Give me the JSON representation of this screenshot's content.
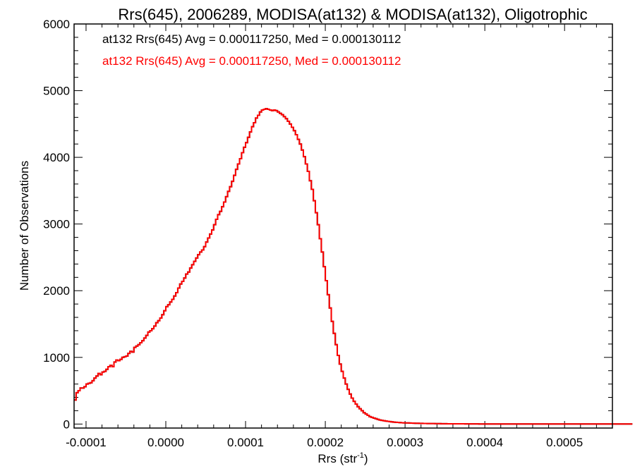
{
  "chart_data": {
    "type": "histogram",
    "title": "Rrs(645), 2006289, MODISA(at132) & MODISA(at132), Oligotrophic",
    "xlabel": "Rrs (str",
    "xlabel_sup": "-1",
    "xlabel_close": ")",
    "ylabel": "Number of Observations",
    "xlim": [
      -0.000115,
      0.00056
    ],
    "ylim": [
      -60,
      6000
    ],
    "x_ticks": [
      -0.0001,
      0.0,
      0.0001,
      0.0002,
      0.0003,
      0.0004,
      0.0005
    ],
    "x_tick_labels": [
      "-0.0001",
      "0.0000",
      "0.0001",
      "0.0002",
      "0.0003",
      "0.0004",
      "0.0005"
    ],
    "y_ticks": [
      0,
      1000,
      2000,
      3000,
      4000,
      5000,
      6000
    ],
    "y_tick_labels": [
      "0",
      "1000",
      "2000",
      "3000",
      "4000",
      "5000",
      "6000"
    ],
    "grid": false,
    "annotations": [
      {
        "text": "at132 Rrs(645) Avg = 0.000117250, Med = 0.000130112",
        "color": "#000000"
      },
      {
        "text": "at132 Rrs(645) Avg = 0.000117250, Med = 0.000130112",
        "color": "#ff0000"
      }
    ],
    "series": [
      {
        "color": "#000000",
        "bin_start": -0.000115,
        "bin_width": 2.5e-06,
        "values": [
          360,
          470,
          500,
          540,
          540,
          560,
          600,
          610,
          620,
          650,
          690,
          720,
          760,
          740,
          780,
          790,
          820,
          860,
          880,
          860,
          930,
          960,
          950,
          970,
          1000,
          1010,
          1020,
          1060,
          1090,
          1080,
          1150,
          1170,
          1190,
          1220,
          1250,
          1290,
          1330,
          1380,
          1400,
          1430,
          1470,
          1520,
          1550,
          1590,
          1640,
          1700,
          1760,
          1790,
          1830,
          1870,
          1920,
          1970,
          2040,
          2100,
          2140,
          2190,
          2250,
          2280,
          2340,
          2390,
          2440,
          2490,
          2540,
          2580,
          2610,
          2660,
          2730,
          2790,
          2850,
          2910,
          2990,
          3070,
          3140,
          3190,
          3260,
          3330,
          3410,
          3490,
          3560,
          3640,
          3730,
          3820,
          3900,
          3980,
          4070,
          4150,
          4220,
          4300,
          4380,
          4460,
          4520,
          4590,
          4630,
          4680,
          4710,
          4720,
          4730,
          4720,
          4710,
          4700,
          4710,
          4700,
          4680,
          4660,
          4640,
          4610,
          4580,
          4540,
          4500,
          4450,
          4400,
          4340,
          4270,
          4200,
          4110,
          4010,
          3900,
          3790,
          3650,
          3520,
          3350,
          3170,
          2990,
          2780,
          2580,
          2360,
          2150,
          1940,
          1740,
          1540,
          1360,
          1190,
          1030,
          900,
          790,
          690,
          600,
          520,
          450,
          390,
          340,
          300,
          260,
          230,
          200,
          170,
          150,
          130,
          110,
          100,
          90,
          80,
          70,
          60,
          55,
          50,
          45,
          40,
          36,
          32,
          29,
          26,
          24,
          22,
          20,
          18,
          17,
          16,
          15,
          14,
          13,
          12,
          11,
          10,
          10,
          9,
          9,
          8,
          8,
          7,
          7,
          6,
          6,
          6,
          5,
          5,
          5,
          4,
          4,
          4,
          4,
          3,
          3,
          3,
          3,
          3,
          2,
          2,
          2,
          2,
          2,
          2,
          2,
          1,
          1,
          1,
          1,
          1,
          1,
          1,
          1,
          1,
          1,
          1,
          1,
          1,
          1,
          1,
          1,
          1,
          1,
          1,
          1,
          1,
          1,
          1,
          1,
          1,
          1,
          1,
          1,
          1,
          1,
          1,
          1,
          1,
          1,
          1,
          1,
          1,
          1,
          1,
          1,
          1,
          1,
          1,
          1,
          1,
          1,
          1,
          1,
          1,
          1,
          1,
          1,
          1,
          1,
          1,
          1,
          1,
          1,
          1,
          1,
          1,
          1,
          1,
          1,
          1,
          1,
          1,
          1,
          1,
          1,
          1,
          1,
          1,
          1,
          1,
          1,
          1
        ]
      },
      {
        "color": "#ff0000",
        "bin_start": -0.000115,
        "bin_width": 2.5e-06,
        "values": [
          360,
          470,
          500,
          540,
          540,
          560,
          600,
          610,
          620,
          650,
          690,
          720,
          760,
          740,
          780,
          790,
          820,
          860,
          880,
          860,
          930,
          960,
          950,
          970,
          1000,
          1010,
          1020,
          1060,
          1090,
          1080,
          1150,
          1170,
          1190,
          1220,
          1250,
          1290,
          1330,
          1380,
          1400,
          1430,
          1470,
          1520,
          1550,
          1590,
          1640,
          1700,
          1760,
          1790,
          1830,
          1870,
          1920,
          1970,
          2040,
          2100,
          2140,
          2190,
          2250,
          2280,
          2340,
          2390,
          2440,
          2490,
          2540,
          2580,
          2610,
          2660,
          2730,
          2790,
          2850,
          2910,
          2990,
          3070,
          3140,
          3190,
          3260,
          3330,
          3410,
          3490,
          3560,
          3640,
          3730,
          3820,
          3900,
          3980,
          4070,
          4150,
          4220,
          4300,
          4380,
          4460,
          4520,
          4590,
          4630,
          4680,
          4710,
          4720,
          4730,
          4720,
          4710,
          4700,
          4710,
          4700,
          4680,
          4660,
          4640,
          4610,
          4580,
          4540,
          4500,
          4450,
          4400,
          4340,
          4270,
          4200,
          4110,
          4010,
          3900,
          3790,
          3650,
          3520,
          3350,
          3170,
          2990,
          2780,
          2580,
          2360,
          2150,
          1940,
          1740,
          1540,
          1360,
          1190,
          1030,
          900,
          790,
          690,
          600,
          520,
          450,
          390,
          340,
          300,
          260,
          230,
          200,
          170,
          150,
          130,
          110,
          100,
          90,
          80,
          70,
          60,
          55,
          50,
          45,
          40,
          36,
          32,
          29,
          26,
          24,
          22,
          20,
          18,
          17,
          16,
          15,
          14,
          13,
          12,
          11,
          10,
          10,
          9,
          9,
          8,
          8,
          7,
          7,
          6,
          6,
          6,
          5,
          5,
          5,
          4,
          4,
          4,
          4,
          3,
          3,
          3,
          3,
          3,
          2,
          2,
          2,
          2,
          2,
          2,
          2,
          1,
          1,
          1,
          1,
          1,
          1,
          1,
          1,
          1,
          1,
          1,
          1,
          1,
          1,
          1,
          1,
          1,
          1,
          1,
          1,
          1,
          1,
          1,
          1,
          1,
          1,
          1,
          1,
          1,
          1,
          1,
          1,
          1,
          1,
          1,
          1,
          1,
          1,
          1,
          1,
          1,
          1,
          1,
          1,
          1,
          1,
          1,
          1,
          1,
          1,
          1,
          1,
          1,
          1,
          1,
          1,
          1,
          1,
          1,
          1,
          1,
          1,
          1,
          1,
          1,
          1,
          1,
          1,
          1,
          1,
          1,
          1,
          1,
          1,
          1,
          1,
          1
        ]
      }
    ]
  }
}
